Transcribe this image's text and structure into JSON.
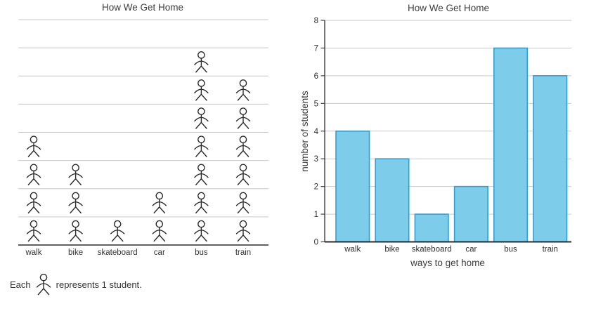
{
  "pictograph": {
    "title": "How We Get Home",
    "caption_prefix": "Each",
    "caption_suffix": "represents 1 student."
  },
  "bar_chart": {
    "title": "How We Get Home",
    "xlabel": "ways to get home",
    "ylabel": "number of students"
  },
  "chart_data": [
    {
      "type": "pictograph",
      "title": "How We Get Home",
      "categories": [
        "walk",
        "bike",
        "skateboard",
        "car",
        "bus",
        "train"
      ],
      "values": [
        4,
        3,
        1,
        2,
        7,
        6
      ],
      "ylim": [
        0,
        8
      ],
      "grid": true,
      "symbol": "stick-figure",
      "symbol_value": 1,
      "caption": "Each stick figure represents 1 student."
    },
    {
      "type": "bar",
      "title": "How We Get Home",
      "categories": [
        "walk",
        "bike",
        "skateboard",
        "car",
        "bus",
        "train"
      ],
      "values": [
        4,
        3,
        1,
        2,
        7,
        6
      ],
      "xlabel": "ways to get home",
      "ylabel": "number of students",
      "ylim": [
        0,
        8
      ],
      "yticks": [
        0,
        1,
        2,
        3,
        4,
        5,
        6,
        7,
        8
      ],
      "grid": true,
      "legend_position": "none",
      "bar_fill": "#7dcdea",
      "bar_stroke": "#2f9fd4"
    }
  ],
  "colors": {
    "grid": "#c9c9c9",
    "axis_dark": "#2b2b2b",
    "axis_medium": "#3f3f3f",
    "text": "#333333",
    "figure": "#2b2b2b",
    "bar_fill": "#7dcdea",
    "bar_stroke": "#2f9fd4"
  }
}
